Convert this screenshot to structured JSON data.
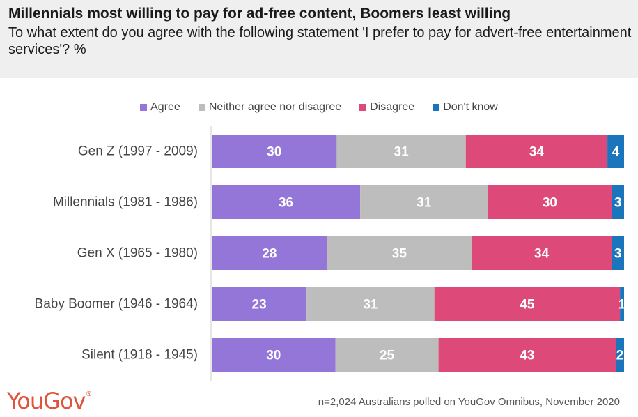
{
  "header": {
    "title": "Millennials most willing to pay for ad-free content, Boomers least willing",
    "subtitle": "To what extent do you agree with the following statement 'I prefer to pay for advert-free entertainment services'? %"
  },
  "footer": {
    "logo": "YouGov",
    "note": "n=2,024 Australians polled on YouGov Omnibus, November 2020"
  },
  "chart_data": {
    "type": "bar",
    "orientation": "horizontal",
    "stacked": true,
    "categories": [
      "Gen Z (1997 - 2009)",
      "Millennials (1981 - 1986)",
      "Gen X (1965 - 1980)",
      "Baby Boomer (1946 - 1964)",
      "Silent (1918 - 1945)"
    ],
    "series": [
      {
        "name": "Agree",
        "color": "#9475d8",
        "values": [
          30,
          36,
          28,
          23,
          30
        ]
      },
      {
        "name": "Neither agree nor disagree",
        "color": "#bdbdbd",
        "values": [
          31,
          31,
          35,
          31,
          25
        ]
      },
      {
        "name": "Disagree",
        "color": "#dd4a7a",
        "values": [
          34,
          30,
          34,
          45,
          43
        ]
      },
      {
        "name": "Don't know",
        "color": "#1b75bc",
        "values": [
          4,
          3,
          3,
          1,
          2
        ]
      }
    ],
    "legend_position": "top-center",
    "grid": false
  }
}
